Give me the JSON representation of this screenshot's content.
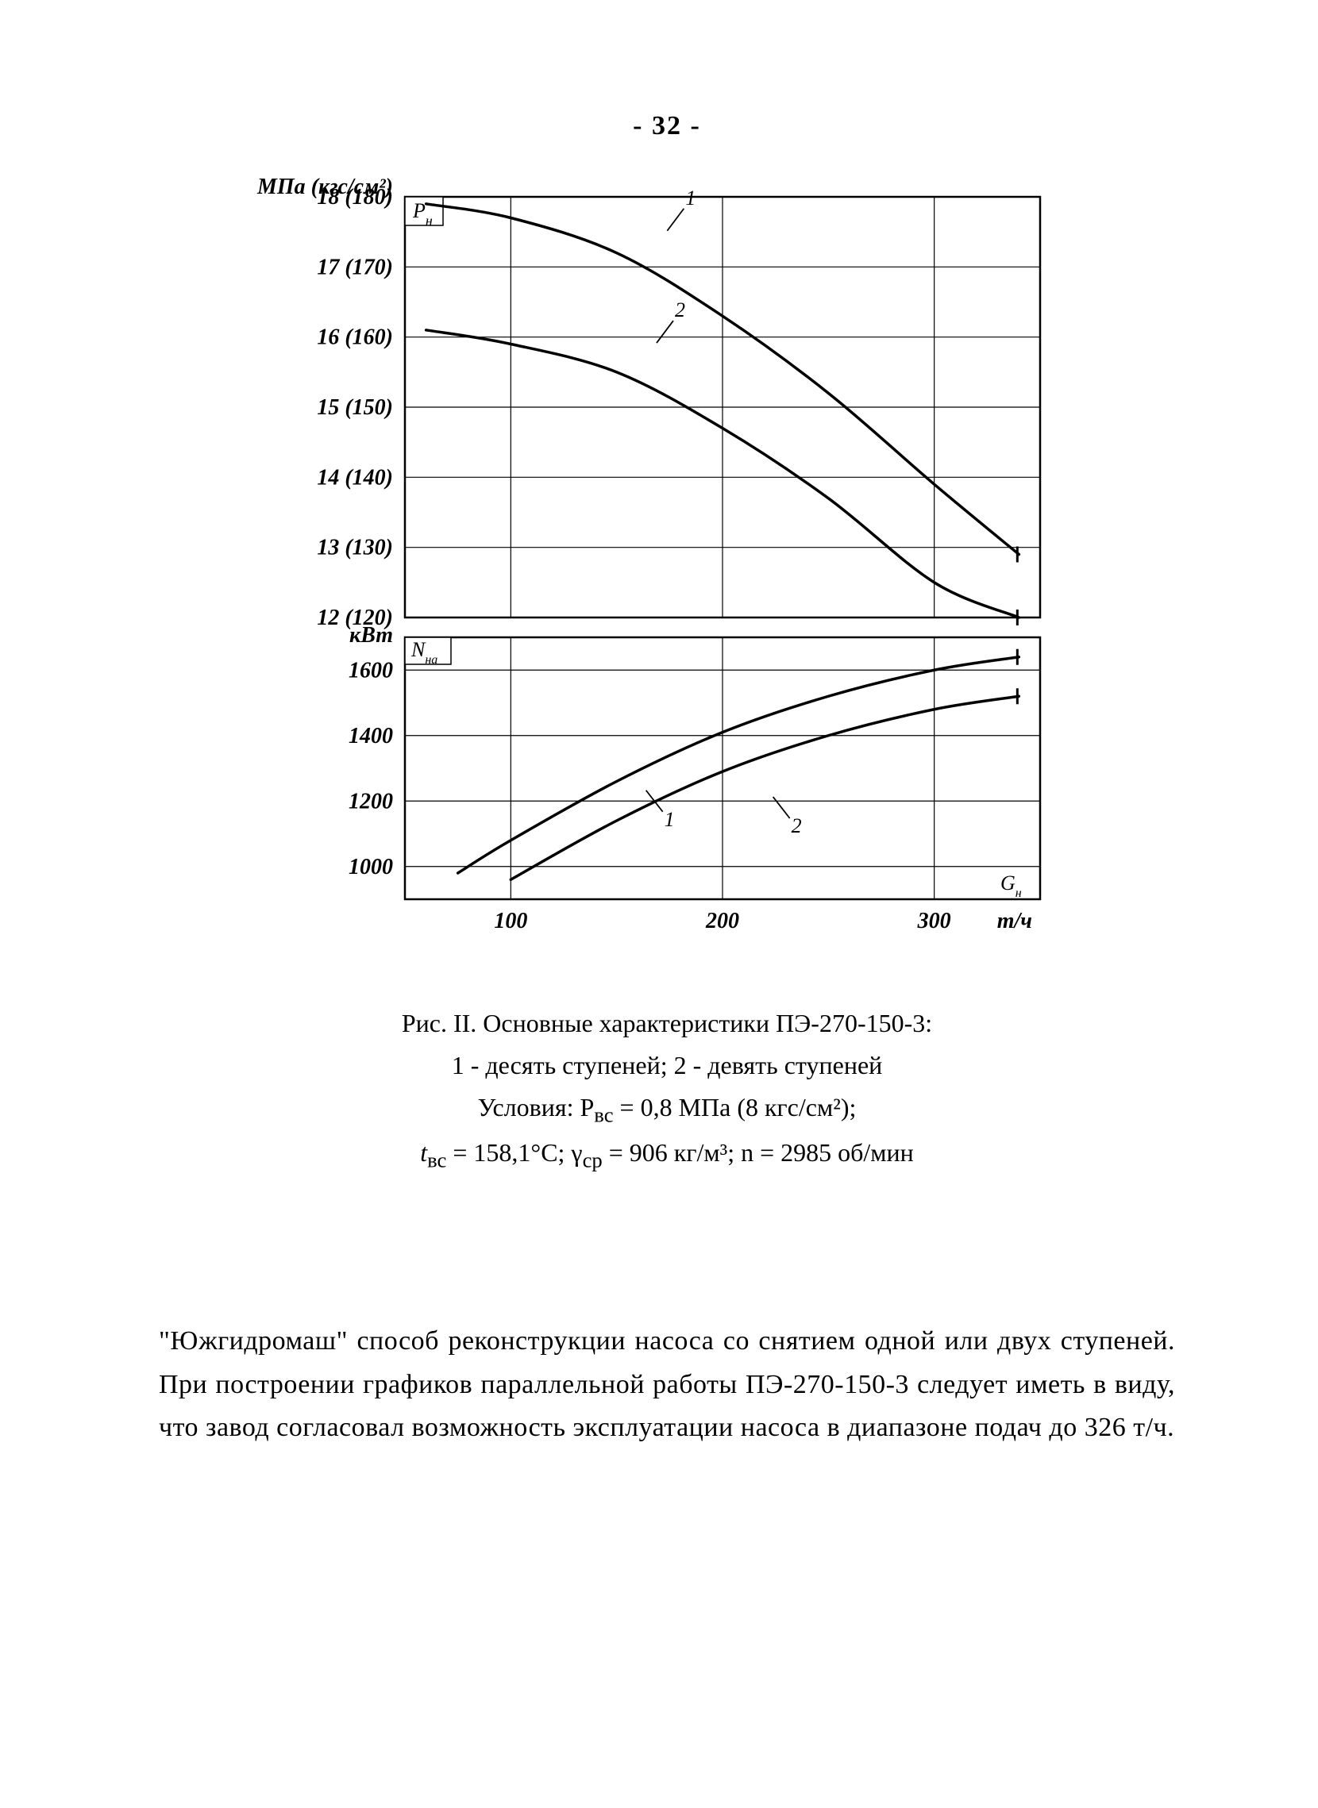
{
  "page": {
    "number": "- 32 -"
  },
  "chart": {
    "background_color": "#ffffff",
    "line_color": "#000000",
    "stroke_width_frame": 2.5,
    "stroke_width_grid": 1.2,
    "stroke_width_curve": 3.5,
    "x": {
      "min": 50,
      "max": 350,
      "ticks": [
        100,
        200,
        300
      ],
      "tick_labels": [
        "100",
        "200",
        "300"
      ],
      "unit_right": "т/ч",
      "symbol_right": "G",
      "symbol_sub": "н"
    },
    "top": {
      "y_unit": "МПа (кгс/см²)",
      "y_ticks": [
        12,
        13,
        14,
        15,
        16,
        17,
        18
      ],
      "y_tick_labels": [
        "12 (120)",
        "13 (130)",
        "14 (140)",
        "15 (150)",
        "16 (160)",
        "17 (170)",
        "18 (180)"
      ],
      "corner_symbol": "P",
      "corner_sub": "н",
      "series": [
        {
          "label": "1",
          "data": [
            [
              60,
              17.9
            ],
            [
              100,
              17.7
            ],
            [
              150,
              17.2
            ],
            [
              200,
              16.3
            ],
            [
              250,
              15.2
            ],
            [
              300,
              13.9
            ],
            [
              340,
              12.9
            ]
          ]
        },
        {
          "label": "2",
          "data": [
            [
              60,
              16.1
            ],
            [
              100,
              15.9
            ],
            [
              150,
              15.5
            ],
            [
              200,
              14.7
            ],
            [
              250,
              13.7
            ],
            [
              300,
              12.5
            ],
            [
              340,
              12.0
            ]
          ]
        }
      ],
      "label_pos": {
        "1": [
          175,
          17.55
        ],
        "2": [
          170,
          15.95
        ]
      }
    },
    "bottom": {
      "y_unit": "кВт",
      "y_ticks": [
        1000,
        1200,
        1400,
        1600
      ],
      "y_tick_labels": [
        "1000",
        "1200",
        "1400",
        "1600"
      ],
      "corner_symbol": "N",
      "corner_sub": "на",
      "series": [
        {
          "label": "1",
          "data": [
            [
              75,
              980
            ],
            [
              100,
              1080
            ],
            [
              150,
              1260
            ],
            [
              200,
              1410
            ],
            [
              250,
              1520
            ],
            [
              300,
              1600
            ],
            [
              340,
              1640
            ]
          ]
        },
        {
          "label": "2",
          "data": [
            [
              100,
              960
            ],
            [
              150,
              1140
            ],
            [
              200,
              1290
            ],
            [
              250,
              1400
            ],
            [
              300,
              1480
            ],
            [
              340,
              1520
            ]
          ]
        }
      ],
      "label_pos": {
        "1": [
          165,
          1240
        ],
        "2": [
          225,
          1220
        ]
      }
    }
  },
  "caption": {
    "l1": "Рис. II. Основные характеристики ПЭ-270-150-3:",
    "l2": "1 - десять ступеней; 2 - девять ступеней",
    "l3_a": "Условия: P",
    "l3_b": "вс",
    "l3_c": " = 0,8 МПа (8 кгс/см²);",
    "l4_a": "t",
    "l4_b": "вс",
    "l4_c": " = 158,1°C;  γ",
    "l4_d": "ср",
    "l4_e": " = 906 кг/м³;    n  = 2985 об/мин"
  },
  "body": {
    "text": "\"Южгидромаш\" способ реконструкции насоса со снятием одной или двух ступеней. При построении графиков параллельной работы ПЭ-270-150-3 следует иметь в виду, что завод согласовал возможность эксплуатации насоса в диапазоне подач до 326 т/ч."
  }
}
